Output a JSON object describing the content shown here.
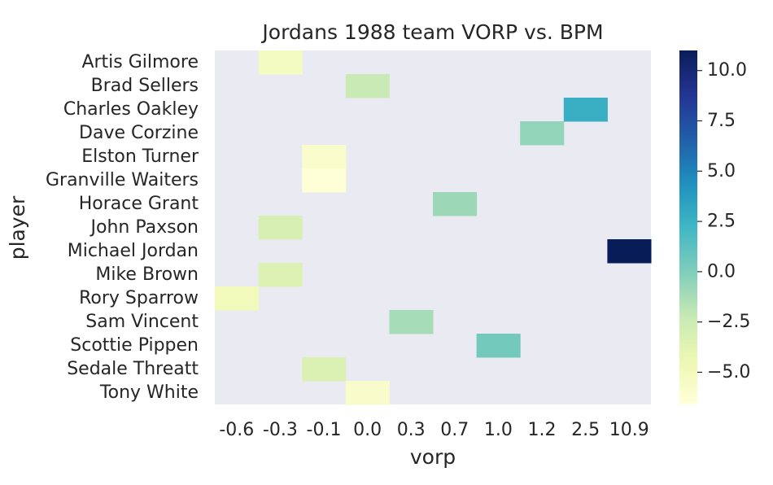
{
  "chart_data": {
    "type": "heatmap",
    "title": "Jordans 1988 team VORP vs. BPM",
    "xlabel": "vorp",
    "ylabel": "player",
    "x_categories": [
      "-0.6",
      "-0.3",
      "-0.1",
      "0.0",
      "0.3",
      "0.7",
      "1.0",
      "1.2",
      "2.5",
      "10.9"
    ],
    "y_categories": [
      "Artis Gilmore",
      "Brad Sellers",
      "Charles Oakley",
      "Dave Corzine",
      "Elston Turner",
      "Granville Waiters",
      "Horace Grant",
      "John Paxson",
      "Michael Jordan",
      "Mike Brown",
      "Rory Sparrow",
      "Sam Vincent",
      "Scottie Pippen",
      "Sedale Threatt",
      "Tony White"
    ],
    "cells": [
      {
        "player": "Artis Gilmore",
        "vorp": "-0.3",
        "bpm": -5.2
      },
      {
        "player": "Brad Sellers",
        "vorp": "0.0",
        "bpm": -2.3
      },
      {
        "player": "Charles Oakley",
        "vorp": "2.5",
        "bpm": 2.6
      },
      {
        "player": "Dave Corzine",
        "vorp": "1.2",
        "bpm": -0.6
      },
      {
        "player": "Elston Turner",
        "vorp": "-0.1",
        "bpm": -5.9
      },
      {
        "player": "Granville Waiters",
        "vorp": "-0.1",
        "bpm": -6.4
      },
      {
        "player": "Horace Grant",
        "vorp": "0.7",
        "bpm": -0.9
      },
      {
        "player": "John Paxson",
        "vorp": "-0.3",
        "bpm": -3.1
      },
      {
        "player": "Michael Jordan",
        "vorp": "10.9",
        "bpm": 11.0
      },
      {
        "player": "Mike Brown",
        "vorp": "-0.3",
        "bpm": -3.5
      },
      {
        "player": "Rory Sparrow",
        "vorp": "-0.6",
        "bpm": -4.9
      },
      {
        "player": "Sam Vincent",
        "vorp": "0.3",
        "bpm": -1.2
      },
      {
        "player": "Scottie Pippen",
        "vorp": "1.0",
        "bpm": 0.4
      },
      {
        "player": "Sedale Threatt",
        "vorp": "-0.1",
        "bpm": -3.3
      },
      {
        "player": "Tony White",
        "vorp": "0.0",
        "bpm": -5.8
      }
    ],
    "colorbar": {
      "colormap": "YlGnBu",
      "range": [
        -6.6,
        11.0
      ],
      "ticks": [
        -5.0,
        -2.5,
        0.0,
        2.5,
        5.0,
        7.5,
        10.0
      ],
      "tick_labels": [
        "−5.0",
        "−2.5",
        "0.0",
        "2.5",
        "5.0",
        "7.5",
        "10.0"
      ]
    },
    "background_color": "#eaeaf2"
  }
}
